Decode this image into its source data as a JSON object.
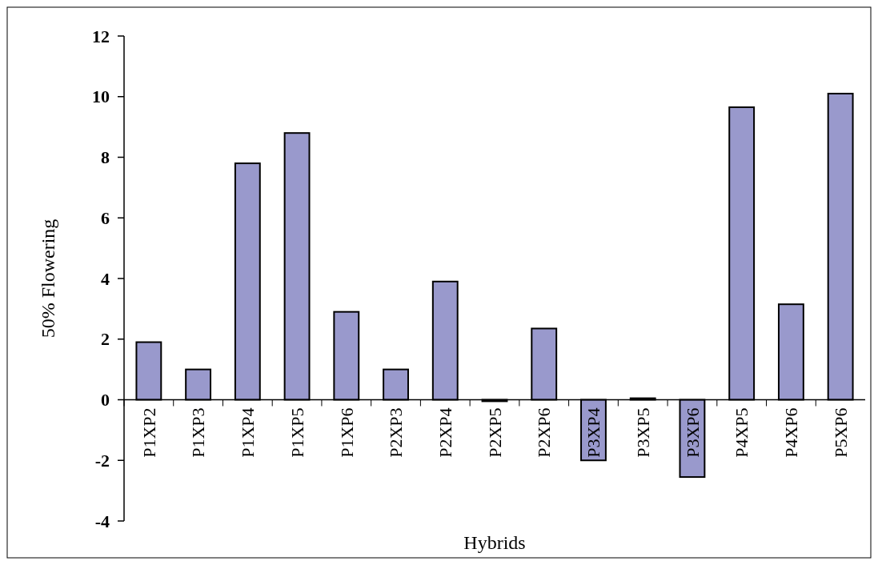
{
  "chart_data": {
    "type": "bar",
    "xlabel": "Hybrids",
    "ylabel": "50% Flowering",
    "categories": [
      "P1XP2",
      "P1XP3",
      "P1XP4",
      "P1XP5",
      "P1XP6",
      "P2XP3",
      "P2XP4",
      "P2XP5",
      "P2XP6",
      "P3XP4",
      "P3XP5",
      "P3XP6",
      "P4XP5",
      "P4XP6",
      "P5XP6"
    ],
    "values": [
      1.9,
      1.0,
      7.8,
      8.8,
      2.9,
      1.0,
      3.9,
      -0.05,
      2.35,
      -2.0,
      0.05,
      -2.55,
      9.65,
      3.15,
      10.1
    ],
    "color": "#9999cc",
    "ylim": [
      -4,
      12
    ],
    "yticks": [
      -4,
      -2,
      0,
      2,
      4,
      6,
      8,
      10,
      12
    ],
    "grid": false
  }
}
